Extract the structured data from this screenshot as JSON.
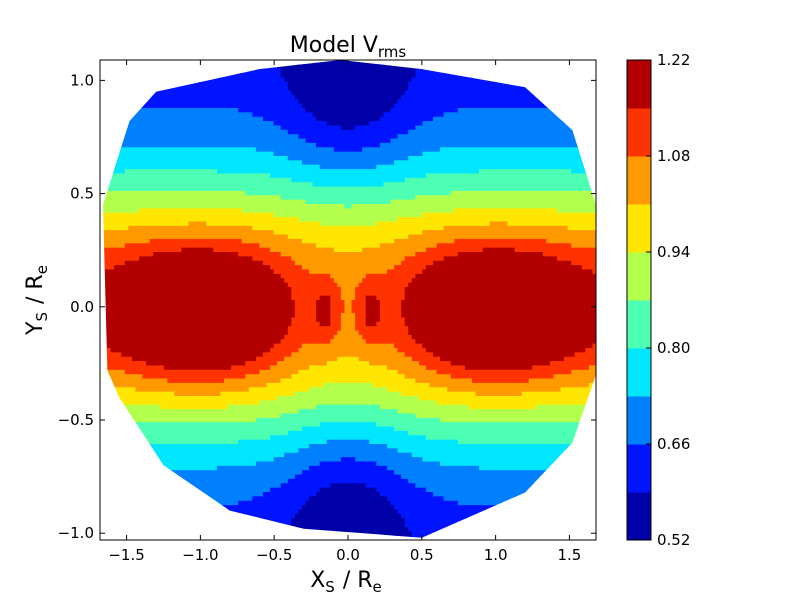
{
  "chart_data": {
    "type": "filled-contour",
    "title": "Model V",
    "title_subscript": "rms",
    "xlabel": "X",
    "xlabel_subscript": "S",
    "xlabel_suffix": "/ R",
    "xlabel_suffix_subscript": "e",
    "ylabel": "Y",
    "ylabel_subscript": "S",
    "ylabel_suffix": "/ R",
    "ylabel_suffix_subscript": "e",
    "xlim": [
      -1.68,
      1.68
    ],
    "ylim": [
      -1.03,
      1.09
    ],
    "xticks": [
      -1.5,
      -1.0,
      -0.5,
      0.0,
      0.5,
      1.0,
      1.5
    ],
    "xtick_labels": [
      "−1.5",
      "−1.0",
      "−0.5",
      "0.0",
      "0.5",
      "1.0",
      "1.5"
    ],
    "yticks": [
      -1.0,
      -0.5,
      0.0,
      0.5,
      1.0
    ],
    "ytick_labels": [
      "−1.0",
      "−0.5",
      "0.0",
      "0.5",
      "1.0"
    ],
    "field_boundary": [
      [
        -1.66,
        0.45
      ],
      [
        -1.48,
        0.82
      ],
      [
        -1.3,
        0.95
      ],
      [
        -0.6,
        1.05
      ],
      [
        -0.05,
        1.09
      ],
      [
        0.5,
        1.05
      ],
      [
        1.2,
        0.97
      ],
      [
        1.52,
        0.78
      ],
      [
        1.68,
        0.45
      ],
      [
        1.68,
        -0.3
      ],
      [
        1.52,
        -0.6
      ],
      [
        1.2,
        -0.82
      ],
      [
        0.5,
        -1.02
      ],
      [
        -0.3,
        -0.98
      ],
      [
        -0.8,
        -0.9
      ],
      [
        -1.25,
        -0.7
      ],
      [
        -1.55,
        -0.4
      ],
      [
        -1.63,
        -0.28
      ]
    ],
    "contour_levels": [
      0.52,
      0.59,
      0.66,
      0.73,
      0.8,
      0.87,
      0.94,
      1.01,
      1.08,
      1.15,
      1.22
    ],
    "level_colors": [
      "#0000a8",
      "#0014ff",
      "#0080ff",
      "#00e6ff",
      "#4dffb3",
      "#b3ff4d",
      "#ffe600",
      "#ff9900",
      "#ff3300",
      "#b20000"
    ],
    "colorbar": {
      "tick_values": [
        0.52,
        0.66,
        0.8,
        0.94,
        1.08,
        1.22
      ],
      "tick_labels": [
        "0.52",
        "0.66",
        "0.80",
        "0.94",
        "1.08",
        "1.22"
      ]
    },
    "peaks": [
      {
        "x": -1.0,
        "y": -0.03,
        "value": 1.22
      },
      {
        "x": 1.0,
        "y": -0.03,
        "value": 1.22
      }
    ]
  }
}
